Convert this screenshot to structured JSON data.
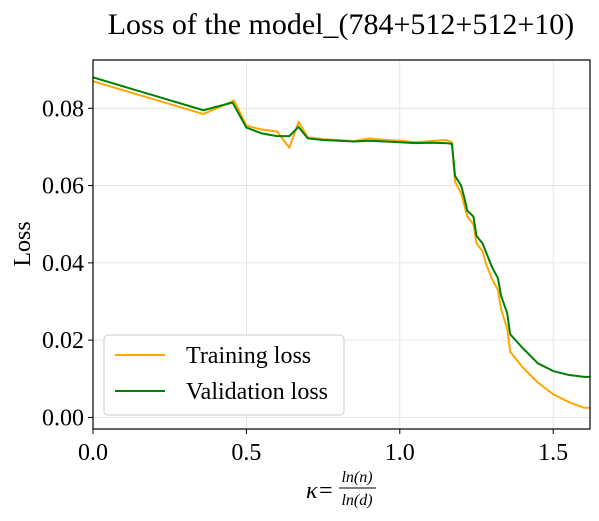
{
  "chart_data": {
    "type": "line",
    "title": "Loss of the model_(784+512+512+10)",
    "xlabel": {
      "prefix": "κ=",
      "numerator": "ln(n)",
      "denominator": "ln(d)"
    },
    "ylabel": "Loss",
    "xlim": [
      0.0,
      1.62
    ],
    "ylim": [
      -0.003,
      0.0925
    ],
    "xticks": [
      0.0,
      0.5,
      1.0,
      1.5
    ],
    "xtick_labels": [
      "0.0",
      "0.5",
      "1.0",
      "1.5"
    ],
    "yticks": [
      0.0,
      0.02,
      0.04,
      0.06,
      0.08
    ],
    "ytick_labels": [
      "0.00",
      "0.02",
      "0.04",
      "0.06",
      "0.08"
    ],
    "grid": true,
    "legend_placement": "lower-left",
    "series": [
      {
        "name": "Training loss",
        "color": "#FFA500",
        "x": [
          0.0,
          0.36,
          0.46,
          0.5,
          0.55,
          0.6,
          0.64,
          0.67,
          0.7,
          0.75,
          0.8,
          0.85,
          0.9,
          0.95,
          1.0,
          1.05,
          1.1,
          1.15,
          1.17,
          1.18,
          1.2,
          1.21,
          1.22,
          1.24,
          1.25,
          1.27,
          1.28,
          1.3,
          1.32,
          1.33,
          1.35,
          1.36,
          1.4,
          1.45,
          1.5,
          1.55,
          1.6,
          1.62
        ],
        "y": [
          0.087,
          0.0785,
          0.082,
          0.0755,
          0.0745,
          0.074,
          0.0698,
          0.0765,
          0.0725,
          0.072,
          0.0718,
          0.0715,
          0.0722,
          0.0718,
          0.0716,
          0.0712,
          0.0715,
          0.0718,
          0.0712,
          0.061,
          0.058,
          0.055,
          0.052,
          0.05,
          0.045,
          0.043,
          0.04,
          0.036,
          0.033,
          0.028,
          0.023,
          0.017,
          0.013,
          0.009,
          0.006,
          0.004,
          0.0025,
          0.0025
        ]
      },
      {
        "name": "Validation loss",
        "color": "#008000",
        "x": [
          0.0,
          0.36,
          0.455,
          0.5,
          0.55,
          0.6,
          0.64,
          0.67,
          0.7,
          0.75,
          0.8,
          0.85,
          0.9,
          0.95,
          1.0,
          1.05,
          1.1,
          1.15,
          1.17,
          1.18,
          1.2,
          1.21,
          1.22,
          1.24,
          1.25,
          1.27,
          1.28,
          1.3,
          1.32,
          1.33,
          1.35,
          1.36,
          1.4,
          1.45,
          1.5,
          1.55,
          1.6,
          1.62
        ],
        "y": [
          0.088,
          0.0795,
          0.0815,
          0.075,
          0.0735,
          0.0728,
          0.0728,
          0.0752,
          0.0722,
          0.0718,
          0.0716,
          0.0714,
          0.0716,
          0.0714,
          0.0712,
          0.071,
          0.0711,
          0.071,
          0.0708,
          0.0625,
          0.06,
          0.057,
          0.0535,
          0.052,
          0.047,
          0.045,
          0.043,
          0.039,
          0.036,
          0.0315,
          0.027,
          0.0215,
          0.018,
          0.014,
          0.012,
          0.011,
          0.0105,
          0.0105
        ]
      }
    ]
  }
}
